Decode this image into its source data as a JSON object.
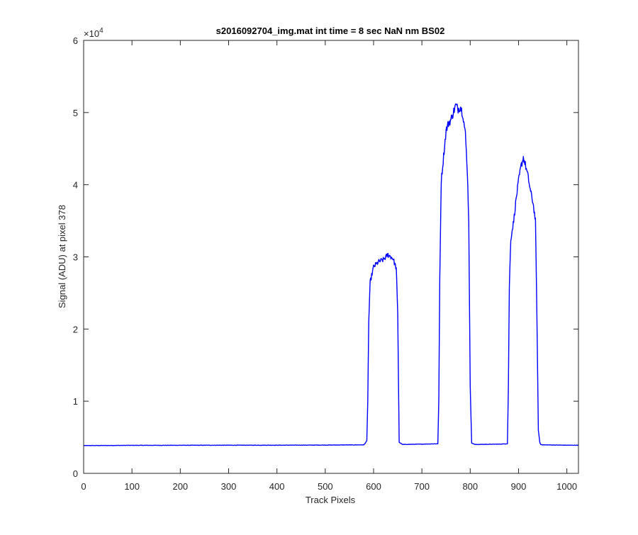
{
  "figure": {
    "background": "#ffffff",
    "axes_color": "#262626",
    "line_color": "#0000ff"
  },
  "chart_data": {
    "type": "line",
    "title": "s2016092704_img.mat int time = 8 sec  NaN nm BS02",
    "xlabel": "Track Pixels",
    "ylabel": "Signal (ADU) at pixel 378",
    "xlim": [
      0,
      1024
    ],
    "ylim": [
      0,
      60000
    ],
    "y_exponent_label": "×10",
    "y_exponent_power": "4",
    "xticks": [
      0,
      100,
      200,
      300,
      400,
      500,
      600,
      700,
      800,
      900,
      1000
    ],
    "xtick_labels": [
      "0",
      "100",
      "200",
      "300",
      "400",
      "500",
      "600",
      "700",
      "800",
      "900",
      "1000"
    ],
    "yticks": [
      0,
      10000,
      20000,
      30000,
      40000,
      50000,
      60000
    ],
    "ytick_labels": [
      "0",
      "1",
      "2",
      "3",
      "4",
      "5",
      "6"
    ],
    "grid": false,
    "legend": "none",
    "series": [
      {
        "color": "#0000ff",
        "x": [
          0,
          100,
          200,
          300,
          400,
          500,
          580,
          586,
          588,
          590,
          593,
          600,
          610,
          620,
          630,
          640,
          647,
          650,
          653,
          660,
          700,
          733,
          735,
          737,
          740,
          745,
          750,
          755,
          760,
          765,
          770,
          775,
          780,
          785,
          790,
          794,
          797,
          800,
          803,
          810,
          860,
          877,
          879,
          881,
          884,
          890,
          895,
          900,
          905,
          910,
          915,
          920,
          925,
          930,
          935,
          938,
          941,
          944,
          946,
          950,
          1000,
          1024
        ],
        "y": [
          3850,
          3880,
          3890,
          3900,
          3900,
          3920,
          3950,
          4500,
          10000,
          21000,
          26500,
          28600,
          29300,
          29600,
          30300,
          29800,
          28400,
          22000,
          4300,
          4000,
          4050,
          4100,
          10000,
          27000,
          40500,
          44000,
          47500,
          48500,
          49000,
          50000,
          51000,
          50500,
          50800,
          49700,
          47000,
          42000,
          35000,
          12000,
          4200,
          4000,
          4050,
          4100,
          12000,
          26000,
          32500,
          35000,
          38000,
          40500,
          42500,
          43800,
          42500,
          41000,
          39000,
          37500,
          35000,
          22000,
          6000,
          4300,
          4000,
          3950,
          3900,
          3900
        ]
      }
    ]
  }
}
